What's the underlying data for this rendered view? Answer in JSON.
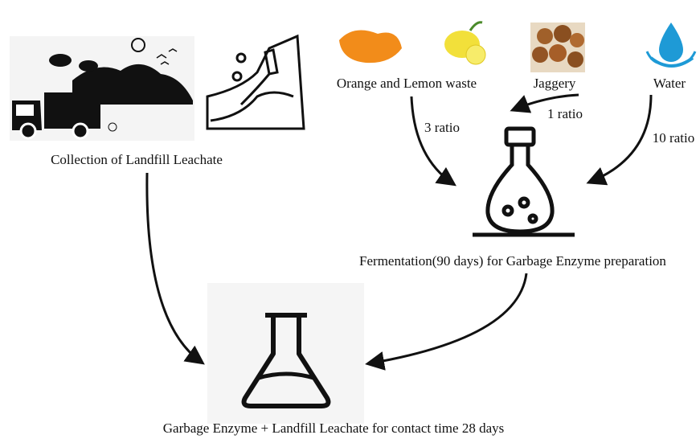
{
  "nodes": [
    {
      "label": "Collection of Landfill Leachate"
    },
    {
      "label": "Orange and Lemon waste"
    },
    {
      "label": "Jaggery"
    },
    {
      "label": "Water"
    },
    {
      "label": "Fermentation(90 days) for Garbage Enzyme preparation"
    },
    {
      "label": "Garbage Enzyme + Landfill Leachate for contact time 28 days"
    }
  ],
  "edges": [
    {
      "label": "3 ratio"
    },
    {
      "label": "1 ratio"
    },
    {
      "label": "10 ratio"
    }
  ]
}
